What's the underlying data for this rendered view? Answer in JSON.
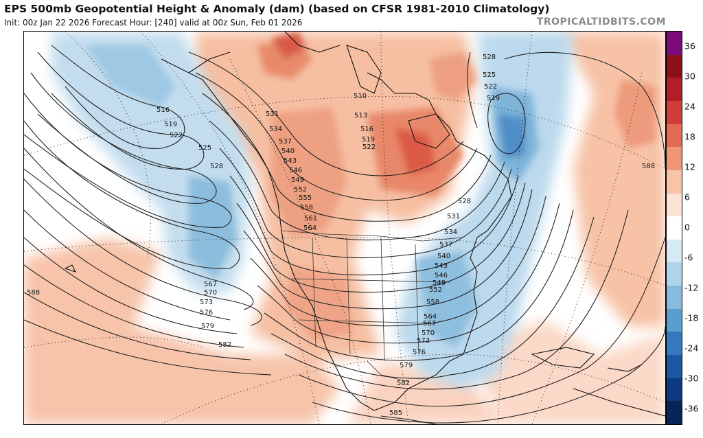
{
  "header": {
    "title": "EPS 500mb Geopotential Height & Anomaly (dam) (based on CFSR 1981-2010 Climatology)",
    "subtitle": "Init: 00z Jan 22 2026   Forecast Hour: [240]   valid at 00z Sun, Feb 01 2026",
    "brand": "TROPICALTIDBITS.COM"
  },
  "colorbar": {
    "labels": [
      "36",
      "30",
      "24",
      "18",
      "12",
      "6",
      "0",
      "-6",
      "-12",
      "-18",
      "-24",
      "-30",
      "-36"
    ],
    "colors": [
      "#7b0a7b",
      "#8c1018",
      "#b11e27",
      "#cf3e3b",
      "#e06a53",
      "#ee9676",
      "#f8c3a8",
      "#fbe3d5",
      "#ffffff",
      "#d6e9f4",
      "#b0d4ea",
      "#86bbde",
      "#5a9dcf",
      "#3479bd",
      "#1b57a3",
      "#0d3a7f",
      "#072557"
    ]
  },
  "map": {
    "contour_labels": [
      "516",
      "519",
      "522",
      "525",
      "528",
      "567",
      "570",
      "573",
      "576",
      "579",
      "582",
      "588",
      "531",
      "534",
      "537",
      "540",
      "543",
      "546",
      "549",
      "552",
      "555",
      "558",
      "561",
      "564",
      "510",
      "513",
      "516",
      "519",
      "522",
      "528",
      "525",
      "522",
      "519",
      "588",
      "528",
      "531",
      "534",
      "537",
      "540",
      "543",
      "546",
      "549",
      "552",
      "558",
      "564",
      "567",
      "570",
      "573",
      "576",
      "579",
      "582",
      "585"
    ]
  }
}
